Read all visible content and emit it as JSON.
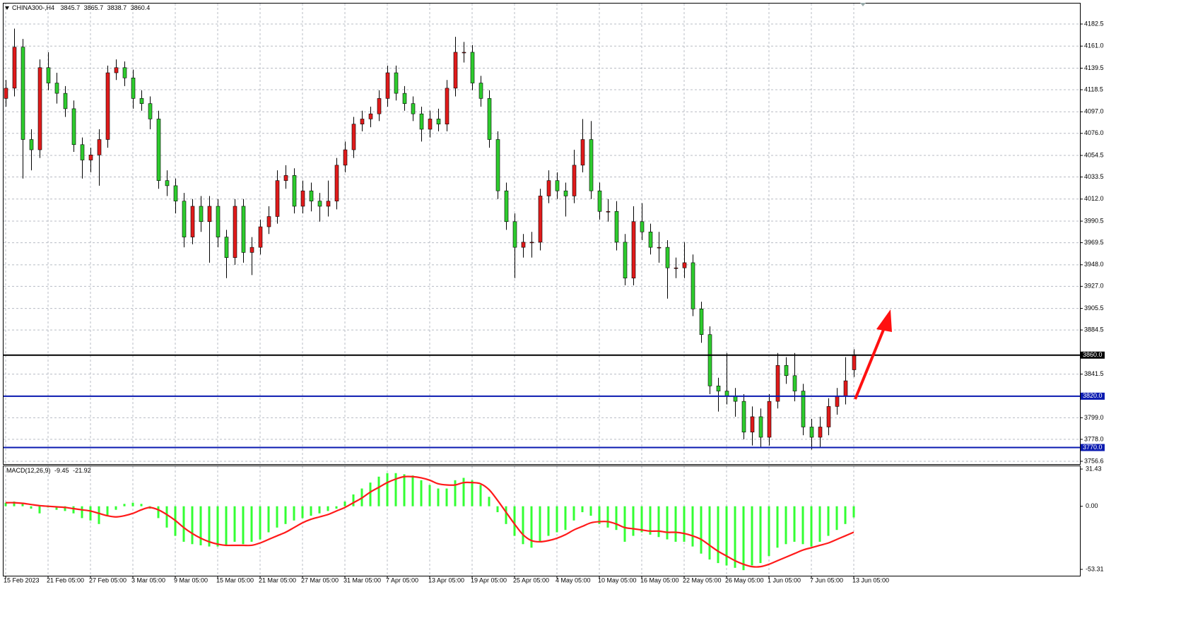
{
  "chart_data": {
    "type": "candlestick",
    "title": "CHINA300-,H4",
    "categories": [
      "15 Feb 2023",
      null,
      null,
      null,
      null,
      "21 Feb 05:00",
      null,
      null,
      null,
      null,
      "27 Feb 05:00",
      null,
      null,
      null,
      null,
      "3 Mar 05:00",
      null,
      null,
      null,
      null,
      "9 Mar 05:00",
      null,
      null,
      null,
      null,
      "15 Mar 05:00",
      null,
      null,
      null,
      null,
      "21 Mar 05:00",
      null,
      null,
      null,
      null,
      "27 Mar 05:00",
      null,
      null,
      null,
      null,
      "31 Mar 05:00",
      null,
      null,
      null,
      null,
      "7 Apr 05:00",
      null,
      null,
      null,
      null,
      "13 Apr 05:00",
      null,
      null,
      null,
      null,
      "19 Apr 05:00",
      null,
      null,
      null,
      null,
      "25 Apr 05:00",
      null,
      null,
      null,
      null,
      "4 May 05:00",
      null,
      null,
      null,
      null,
      "10 May 05:00",
      null,
      null,
      null,
      null,
      "16 May 05:00",
      null,
      null,
      null,
      null,
      "22 May 05:00",
      null,
      null,
      null,
      null,
      "26 May 05:00",
      null,
      null,
      null,
      null,
      "1 Jun 05:00",
      null,
      null,
      null,
      null,
      "7 Jun 05:00",
      null,
      null,
      null,
      null,
      "13 Jun 05:00"
    ],
    "open": [
      4110,
      4120,
      4160,
      4070,
      4060,
      4140,
      4125,
      4115,
      4100,
      4065,
      4050,
      4055,
      4070,
      4135,
      4140,
      4130,
      4110,
      4105,
      4090,
      4030,
      4025,
      4010,
      3975,
      4005,
      3990,
      4005,
      3975,
      3955,
      4005,
      3960,
      3965,
      3985,
      3995,
      4030,
      4035,
      4005,
      4020,
      4010,
      4005,
      4010,
      4045,
      4060,
      4085,
      4090,
      4095,
      4110,
      4135,
      4115,
      4105,
      4095,
      4080,
      4090,
      4085,
      4120,
      4155,
      4155,
      4125,
      4110,
      4070,
      4020,
      3990,
      3965,
      3970,
      3970,
      4015,
      4030,
      4020,
      4015,
      4045,
      4070,
      4020,
      4000,
      4000,
      3970,
      3935,
      3990,
      3980,
      3965,
      3965,
      3945,
      3945,
      3950,
      3905,
      3880,
      3830,
      3825,
      3820,
      3815,
      3785,
      3800,
      3780,
      3815,
      3850,
      3840,
      3825,
      3790,
      3780,
      3790,
      3810,
      3820,
      3845.7
    ],
    "high": [
      4128,
      4178,
      4168,
      4080,
      4148,
      4155,
      4135,
      4122,
      4108,
      4072,
      4062,
      4080,
      4142,
      4148,
      4146,
      4138,
      4118,
      4112,
      4098,
      4040,
      4032,
      4018,
      4012,
      4015,
      4015,
      4012,
      3982,
      4012,
      4012,
      3975,
      3992,
      4005,
      4040,
      4045,
      4042,
      4030,
      4028,
      4018,
      4030,
      4052,
      4068,
      4092,
      4098,
      4102,
      4118,
      4142,
      4142,
      4122,
      4112,
      4102,
      4098,
      4100,
      4128,
      4170,
      4165,
      4162,
      4132,
      4118,
      4078,
      4028,
      3998,
      3978,
      3980,
      4022,
      4040,
      4038,
      4028,
      4060,
      4090,
      4088,
      4028,
      4012,
      4010,
      3978,
      4005,
      4008,
      3988,
      3980,
      3972,
      3955,
      3970,
      3958,
      3912,
      3888,
      3838,
      3862,
      3828,
      3822,
      3810,
      3808,
      3822,
      3862,
      3858,
      3862,
      3832,
      3798,
      3800,
      3818,
      3828,
      3858,
      3865.7
    ],
    "low": [
      4102,
      4112,
      4032,
      4040,
      4052,
      4118,
      4105,
      4092,
      4058,
      4032,
      4038,
      4025,
      4062,
      4128,
      4122,
      4100,
      4098,
      4080,
      4022,
      4015,
      3998,
      3965,
      3968,
      3980,
      3950,
      3965,
      3935,
      3948,
      3950,
      3938,
      3958,
      3978,
      3988,
      4022,
      3998,
      3998,
      4000,
      3990,
      3995,
      4002,
      4038,
      4052,
      4078,
      4082,
      4088,
      4102,
      4108,
      4098,
      4088,
      4068,
      4072,
      4078,
      4078,
      4112,
      4145,
      4118,
      4102,
      4062,
      4012,
      3982,
      3935,
      3955,
      3955,
      3962,
      4008,
      4012,
      3995,
      4008,
      4038,
      4012,
      3992,
      3990,
      3962,
      3928,
      3928,
      3972,
      3958,
      3950,
      3915,
      3935,
      3935,
      3898,
      3872,
      3822,
      3805,
      3812,
      3800,
      3778,
      3772,
      3770,
      3772,
      3808,
      3832,
      3815,
      3782,
      3768,
      3770,
      3782,
      3802,
      3812,
      3838.7
    ],
    "close": [
      4120,
      4160,
      4070,
      4060,
      4140,
      4125,
      4115,
      4100,
      4065,
      4050,
      4055,
      4070,
      4135,
      4140,
      4130,
      4110,
      4105,
      4090,
      4030,
      4025,
      4010,
      3975,
      4005,
      3990,
      4005,
      3975,
      3955,
      4005,
      3960,
      3965,
      3985,
      3995,
      4030,
      4035,
      4005,
      4020,
      4010,
      4005,
      4010,
      4045,
      4060,
      4085,
      4090,
      4095,
      4110,
      4135,
      4115,
      4105,
      4095,
      4080,
      4090,
      4085,
      4120,
      4155,
      4155,
      4125,
      4110,
      4070,
      4020,
      3990,
      3965,
      3970,
      3970,
      4015,
      4030,
      4020,
      4015,
      4045,
      4070,
      4020,
      4000,
      4000,
      3970,
      3935,
      3990,
      3980,
      3965,
      3965,
      3945,
      3945,
      3950,
      3905,
      3880,
      3830,
      3825,
      3820,
      3815,
      3785,
      3800,
      3780,
      3815,
      3850,
      3840,
      3825,
      3790,
      3780,
      3790,
      3810,
      3820,
      3835,
      3860.4
    ],
    "up_color": "#e01b1b",
    "down_color": "#2ecc2e",
    "ylim": [
      3756.6,
      4182.5
    ],
    "yticks": [
      {
        "value": 4182.5,
        "label": "4182.5"
      },
      {
        "value": 4161,
        "label": "4161.0"
      },
      {
        "value": 4139.5,
        "label": "4139.5"
      },
      {
        "value": 4118.5,
        "label": "4118.5"
      },
      {
        "value": 4097,
        "label": "4097.0"
      },
      {
        "value": 4076,
        "label": "4076.0"
      },
      {
        "value": 4054.5,
        "label": "4054.5"
      },
      {
        "value": 4033.5,
        "label": "4033.5"
      },
      {
        "value": 4012,
        "label": "4012.0"
      },
      {
        "value": 3990.5,
        "label": "3990.5"
      },
      {
        "value": 3969.5,
        "label": "3969.5"
      },
      {
        "value": 3948,
        "label": "3948.0"
      },
      {
        "value": 3927,
        "label": "3927.0"
      },
      {
        "value": 3905.5,
        "label": "3905.5"
      },
      {
        "value": 3884.5,
        "label": "3884.5"
      },
      {
        "value": 3841.5,
        "label": "3841.5"
      },
      {
        "value": 3799,
        "label": "3799.0"
      },
      {
        "value": 3778,
        "label": "3778.0"
      },
      {
        "value": 3756.6,
        "label": "3756.6"
      }
    ],
    "grid": true,
    "levels": [
      {
        "value": 3860,
        "label": "3860.0",
        "color": "#000000"
      },
      {
        "value": 3820,
        "label": "3820.0",
        "color": "#0a1ab0"
      },
      {
        "value": 3770,
        "label": "3770.0",
        "color": "#0a1ab0"
      }
    ],
    "indicator": {
      "name": "MACD(12,26,9)",
      "histogram": [
        3,
        4,
        2,
        -2,
        -6,
        -1,
        -3,
        -4,
        -6,
        -10,
        -12,
        -15,
        -8,
        -3,
        2,
        3,
        2,
        -2,
        -10,
        -18,
        -25,
        -30,
        -32,
        -33,
        -34,
        -34,
        -33,
        -30,
        -32,
        -30,
        -28,
        -22,
        -18,
        -15,
        -12,
        -10,
        -8,
        -6,
        -4,
        -2,
        4,
        10,
        15,
        20,
        25,
        28,
        28,
        27,
        26,
        22,
        18,
        15,
        15,
        22,
        24,
        22,
        18,
        8,
        -5,
        -15,
        -25,
        -32,
        -35,
        -30,
        -25,
        -22,
        -20,
        -12,
        -5,
        -8,
        -15,
        -18,
        -20,
        -30,
        -25,
        -22,
        -24,
        -26,
        -28,
        -30,
        -30,
        -34,
        -40,
        -45,
        -48,
        -50,
        -52,
        -54,
        -50,
        -48,
        -42,
        -35,
        -32,
        -30,
        -32,
        -34,
        -30,
        -25,
        -20,
        -15,
        -9.45
      ],
      "signal": [
        3,
        3,
        2.5,
        1.5,
        0.5,
        0,
        -0.5,
        -1,
        -2,
        -3,
        -4,
        -6,
        -8,
        -9,
        -8,
        -6,
        -3,
        -1,
        -3,
        -7,
        -12,
        -18,
        -23,
        -27,
        -30,
        -32,
        -33,
        -33,
        -33,
        -33,
        -31,
        -28,
        -25,
        -22,
        -18,
        -14,
        -11,
        -9,
        -7,
        -4,
        -1,
        3,
        7,
        12,
        16,
        20,
        23,
        25,
        25,
        24,
        22,
        19,
        18,
        18,
        20,
        20,
        19,
        14,
        5,
        -5,
        -15,
        -24,
        -29,
        -30,
        -29,
        -27,
        -24,
        -20,
        -17,
        -14,
        -13,
        -13,
        -15,
        -18,
        -19,
        -20,
        -21,
        -21,
        -22,
        -22,
        -23,
        -25,
        -28,
        -33,
        -38,
        -42,
        -46,
        -49,
        -51,
        -51,
        -49,
        -46,
        -43,
        -40,
        -37,
        -35,
        -33,
        -31,
        -28,
        -25,
        -21.92
      ],
      "histogram_color": "#33ff33",
      "signal_color": "#ff1a1a",
      "ylim": [
        -53.31,
        31.43
      ],
      "yticks": [
        {
          "value": 31.43,
          "label": "31.43"
        },
        {
          "value": 0,
          "label": "0.00"
        },
        {
          "value": -53.31,
          "label": "-53.31"
        }
      ]
    }
  }
}
